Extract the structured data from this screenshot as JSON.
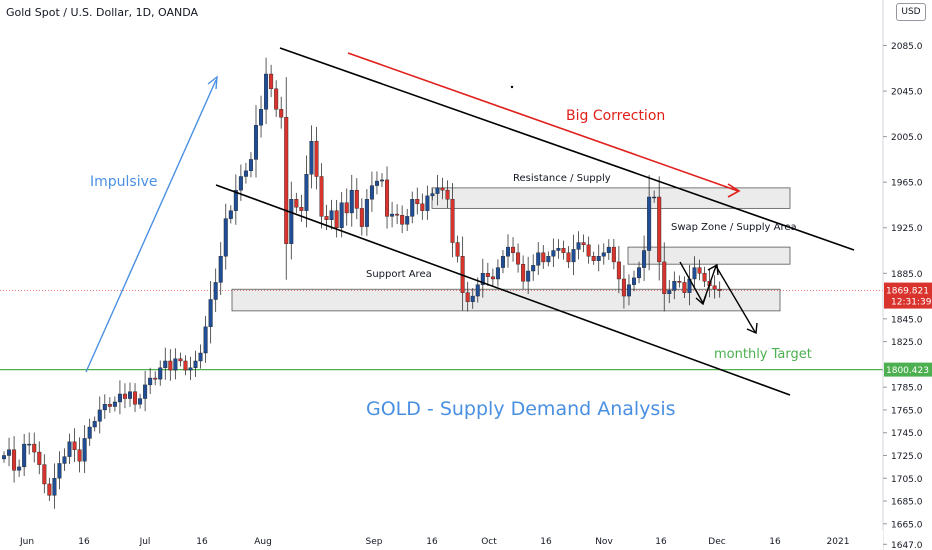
{
  "header": {
    "symbol_line": "Gold Spot / U.S. Dollar, 1D, OANDA"
  },
  "badge": {
    "currency": "USD"
  },
  "colors": {
    "up": "#1f4e96",
    "down": "#d9332d",
    "green": "#4caf50",
    "red": "#e0201b",
    "blue": "#4a90e2",
    "black": "#000000",
    "zone_fill": "#e6e6e6",
    "zone_stroke": "#555555"
  },
  "chart_data": {
    "type": "candlestick",
    "title": "",
    "x_ticks": [
      "Jun",
      "16",
      "Jul",
      "16",
      "Aug",
      "Sep",
      "16",
      "Oct",
      "16",
      "Nov",
      "16",
      "Dec",
      "16",
      "2021"
    ],
    "y_ticks": [
      1647.0,
      1665.0,
      1685.0,
      1705.0,
      1725.0,
      1745.0,
      1765.0,
      1785.0,
      1825.0,
      1845.0,
      1885.0,
      1925.0,
      1965.0,
      2005.0,
      2045.0,
      2085.0
    ],
    "ylim": [
      1642,
      2125
    ],
    "last_price": {
      "label": "1869.821",
      "value": 1869.821,
      "countdown": "12:31:39"
    },
    "target_level": {
      "label": "1800.423",
      "value": 1800.423
    },
    "annotations": {
      "impulsive": "Impulsive",
      "big_correction": "Big Correction",
      "resistance": "Resistance / Supply",
      "swap_zone": "Swap Zone / Supply Area",
      "support": "Support Area",
      "monthly_target": "monthly Target",
      "main_title": "GOLD - Supply Demand Analysis"
    },
    "zones": [
      {
        "name": "resistance",
        "low": 1942,
        "high": 1960
      },
      {
        "name": "swap-zone",
        "low": 1893,
        "high": 1908
      },
      {
        "name": "support",
        "low": 1852,
        "high": 1871
      }
    ],
    "closes": [
      1725,
      1730,
      1712,
      1715,
      1735,
      1735,
      1728,
      1717,
      1700,
      1690,
      1705,
      1718,
      1724,
      1737,
      1730,
      1720,
      1740,
      1750,
      1755,
      1765,
      1770,
      1768,
      1772,
      1779,
      1775,
      1781,
      1770,
      1775,
      1787,
      1793,
      1792,
      1802,
      1808,
      1800,
      1810,
      1808,
      1800,
      1802,
      1808,
      1815,
      1838,
      1862,
      1877,
      1900,
      1933,
      1940,
      1958,
      1970,
      1975,
      1985,
      2015,
      2029,
      2060,
      2047,
      2029,
      2022,
      1911,
      1950,
      1943,
      1940,
      1972,
      2001,
      1970,
      1935,
      1932,
      1940,
      1925,
      1947,
      1938,
      1958,
      1942,
      1926,
      1950,
      1962,
      1966,
      1967,
      1935,
      1937,
      1936,
      1928,
      1935,
      1950,
      1946,
      1940,
      1953,
      1955,
      1960,
      1958,
      1950,
      1912,
      1900,
      1868,
      1860,
      1865,
      1875,
      1885,
      1882,
      1880,
      1890,
      1900,
      1908,
      1903,
      1893,
      1878,
      1887,
      1892,
      1903,
      1895,
      1900,
      1905,
      1907,
      1903,
      1895,
      1906,
      1912,
      1910,
      1900,
      1896,
      1900,
      1903,
      1908,
      1895,
      1880,
      1865,
      1875,
      1881,
      1890,
      1905,
      1952,
      1952,
      1895,
      1867,
      1870,
      1878,
      1877,
      1868,
      1880,
      1890,
      1885,
      1878,
      1874,
      1871,
      1869.821
    ]
  }
}
